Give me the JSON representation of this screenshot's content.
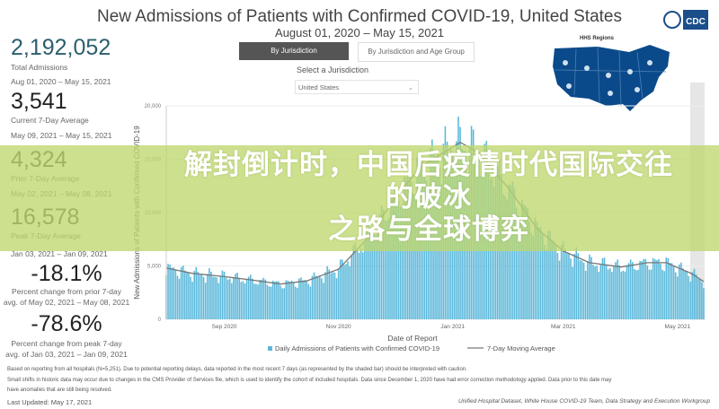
{
  "header": {
    "title": "New Admissions of Patients with Confirmed COVID-19, United States",
    "subtitle": "August 01, 2020 – May 15, 2021",
    "logo_text": "CDC"
  },
  "kpis": [
    {
      "value": "2,192,052",
      "label": "Total Admissions",
      "sub": "Aug 01, 2020 – May 15, 2021",
      "color": "#2c5f6e"
    },
    {
      "value": "3,541",
      "label": "Current 7-Day Average",
      "sub": "May 09, 2021 – May 15, 2021",
      "color": "#222222"
    },
    {
      "value": "4,324",
      "label": "Prior 7-Day Average",
      "sub": "May 02, 2021 – May 08, 2021",
      "color": "#333333"
    },
    {
      "value": "16,578",
      "label": "Peak 7-Day Average",
      "sub": "Jan 03, 2021 – Jan 09, 2021",
      "color": "#333333"
    },
    {
      "value": "-18.1%",
      "label": "Percent change from prior 7-day",
      "sub": "avg. of May 02, 2021 – May 08, 2021",
      "color": "#222222"
    },
    {
      "value": "-78.6%",
      "label": "Percent change from peak 7-day",
      "sub": "avg. of Jan 03, 2021 – Jan 09, 2021",
      "color": "#222222"
    }
  ],
  "tabs": [
    {
      "label": "By Jurisdiction",
      "active": true
    },
    {
      "label": "By Jurisdiction and Age Group",
      "active": false
    }
  ],
  "jurisdiction": {
    "label": "Select a Jurisdiction",
    "value": "United States",
    "icon": "chevron-down-icon"
  },
  "map": {
    "title": "HHS Regions",
    "color": "#0b4a8a"
  },
  "chart_data": {
    "type": "bar",
    "title": "",
    "xlabel": "Date of Report",
    "ylabel": "New Admissions of Patients with Confirmed COVID-19",
    "ylim": [
      0,
      20000
    ],
    "xlim": [
      "2020-08-01",
      "2021-05-15"
    ],
    "yticks": [
      "0",
      "5,000",
      "10,000",
      "15,000",
      "20,000"
    ],
    "ytick_values": [
      0,
      5000,
      10000,
      15000,
      20000
    ],
    "xticks": [
      {
        "label": "Sep 2020",
        "date": "2020-09-01"
      },
      {
        "label": "Nov 2020",
        "date": "2020-11-01"
      },
      {
        "label": "Jan 2021",
        "date": "2021-01-01"
      },
      {
        "label": "Mar 2021",
        "date": "2021-03-01"
      },
      {
        "label": "May 2021",
        "date": "2021-05-01"
      }
    ],
    "grid": true,
    "legend_position": "bottom",
    "series": [
      {
        "name": "Daily Admissions of Patients with Confirmed COVID-19",
        "kind": "bar",
        "color": "#5bb8da"
      },
      {
        "name": "7-Day Moving Average",
        "kind": "line",
        "color": "#777777",
        "points": [
          [
            "2020-08-01",
            4800
          ],
          [
            "2020-08-15",
            4300
          ],
          [
            "2020-09-01",
            4000
          ],
          [
            "2020-09-15",
            3700
          ],
          [
            "2020-10-01",
            3300
          ],
          [
            "2020-10-15",
            3600
          ],
          [
            "2020-11-01",
            4700
          ],
          [
            "2020-11-15",
            7300
          ],
          [
            "2020-12-01",
            11300
          ],
          [
            "2020-12-15",
            14300
          ],
          [
            "2021-01-05",
            16578
          ],
          [
            "2021-01-15",
            15600
          ],
          [
            "2021-02-01",
            12000
          ],
          [
            "2021-02-15",
            8500
          ],
          [
            "2021-03-01",
            6400
          ],
          [
            "2021-03-15",
            5300
          ],
          [
            "2021-04-01",
            4900
          ],
          [
            "2021-04-15",
            5300
          ],
          [
            "2021-04-25",
            5300
          ],
          [
            "2021-05-08",
            4324
          ],
          [
            "2021-05-15",
            3541
          ]
        ]
      }
    ]
  },
  "footer": {
    "note1": "Based on reporting from all hospitals (N=5,251). Due to potential reporting delays, data reported in the most recent 7 days (as represented by the shaded bar) should be interpreted with caution.",
    "note2": "Small shifts in historic data may occur due to changes in the CMS Provider of Services file, which is used to identify the cohort of included hospitals. Data since December 1, 2020 have had error correction methodology applied. Data prior to this date may",
    "note3": "have anomalies that are still being resolved.",
    "updated": "Last Updated: May 17, 2021",
    "source": "Unified Hospital Dataset, White House COVID-19 Team, Data Strategy and Execution Workgroup"
  },
  "banner": {
    "line1": "解封倒计时，中国后疫情时代国际交往的破冰",
    "line2": "之路与全球博弈"
  }
}
